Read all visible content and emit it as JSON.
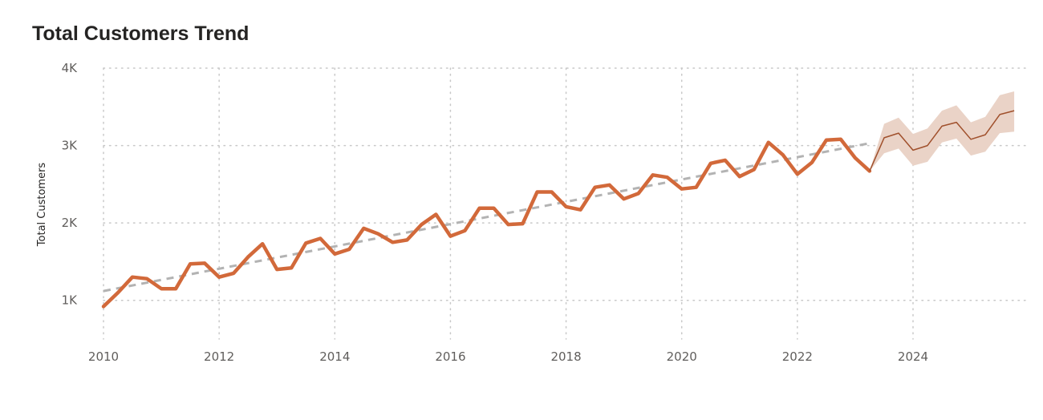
{
  "chart_data": {
    "type": "line",
    "title": "Total Customers Trend",
    "xlabel": "",
    "ylabel": "Total Customers",
    "xlim": [
      2010,
      2025.8
    ],
    "ylim": [
      500,
      4000
    ],
    "x_ticks": [
      2010,
      2012,
      2014,
      2016,
      2018,
      2020,
      2022,
      2024
    ],
    "y_ticks": [
      {
        "value": 1000,
        "label": "1K"
      },
      {
        "value": 2000,
        "label": "2K"
      },
      {
        "value": 3000,
        "label": "3K"
      },
      {
        "value": 4000,
        "label": "4K"
      }
    ],
    "grid": "dotted",
    "colors": {
      "actual": "#D2693A",
      "forecast": "#A0502C",
      "band": "#EAD3C7",
      "trend": "#B3B3B3",
      "grid": "#C8C8C8"
    },
    "series": [
      {
        "role": "actual",
        "points": [
          [
            2010.0,
            920
          ],
          [
            2010.25,
            1100
          ],
          [
            2010.5,
            1300
          ],
          [
            2010.75,
            1280
          ],
          [
            2011.0,
            1150
          ],
          [
            2011.25,
            1150
          ],
          [
            2011.5,
            1470
          ],
          [
            2011.75,
            1480
          ],
          [
            2012.0,
            1300
          ],
          [
            2012.25,
            1350
          ],
          [
            2012.5,
            1560
          ],
          [
            2012.75,
            1730
          ],
          [
            2013.0,
            1400
          ],
          [
            2013.25,
            1420
          ],
          [
            2013.5,
            1740
          ],
          [
            2013.75,
            1800
          ],
          [
            2014.0,
            1600
          ],
          [
            2014.25,
            1660
          ],
          [
            2014.5,
            1930
          ],
          [
            2014.75,
            1860
          ],
          [
            2015.0,
            1750
          ],
          [
            2015.25,
            1780
          ],
          [
            2015.5,
            1980
          ],
          [
            2015.75,
            2110
          ],
          [
            2016.0,
            1830
          ],
          [
            2016.25,
            1900
          ],
          [
            2016.5,
            2190
          ],
          [
            2016.75,
            2190
          ],
          [
            2017.0,
            1980
          ],
          [
            2017.25,
            1990
          ],
          [
            2017.5,
            2400
          ],
          [
            2017.75,
            2400
          ],
          [
            2018.0,
            2210
          ],
          [
            2018.25,
            2170
          ],
          [
            2018.5,
            2460
          ],
          [
            2018.75,
            2490
          ],
          [
            2019.0,
            2310
          ],
          [
            2019.25,
            2380
          ],
          [
            2019.5,
            2620
          ],
          [
            2019.75,
            2590
          ],
          [
            2020.0,
            2440
          ],
          [
            2020.25,
            2460
          ],
          [
            2020.5,
            2770
          ],
          [
            2020.75,
            2810
          ],
          [
            2021.0,
            2600
          ],
          [
            2021.25,
            2690
          ],
          [
            2021.5,
            3040
          ],
          [
            2021.75,
            2880
          ],
          [
            2022.0,
            2630
          ],
          [
            2022.25,
            2780
          ],
          [
            2022.5,
            3070
          ],
          [
            2022.75,
            3080
          ],
          [
            2023.0,
            2840
          ],
          [
            2023.25,
            2670
          ]
        ]
      },
      {
        "role": "forecast",
        "points": [
          [
            2023.25,
            2670
          ],
          [
            2023.5,
            3100
          ],
          [
            2023.75,
            3160
          ],
          [
            2024.0,
            2940
          ],
          [
            2024.25,
            3000
          ],
          [
            2024.5,
            3250
          ],
          [
            2024.75,
            3300
          ],
          [
            2025.0,
            3080
          ],
          [
            2025.25,
            3140
          ],
          [
            2025.5,
            3400
          ],
          [
            2025.75,
            3450
          ]
        ],
        "upper": [
          2670,
          3280,
          3360,
          3150,
          3220,
          3450,
          3520,
          3300,
          3370,
          3650,
          3700
        ],
        "lower": [
          2670,
          2900,
          2960,
          2740,
          2790,
          3040,
          3090,
          2870,
          2920,
          3160,
          3180
        ]
      },
      {
        "role": "trend",
        "points": [
          [
            2010.0,
            1120
          ],
          [
            2023.25,
            3030
          ]
        ]
      }
    ]
  }
}
